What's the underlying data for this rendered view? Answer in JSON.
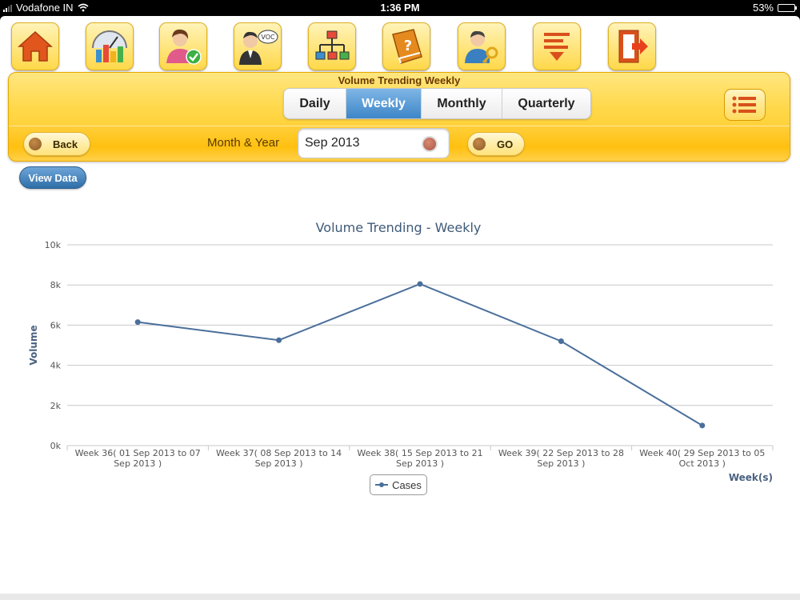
{
  "status_bar": {
    "carrier": "Vodafone IN",
    "time": "1:36 PM",
    "battery": "53%",
    "battery_level": 0.53
  },
  "toolbar": {
    "icons": [
      "home-icon",
      "dashboard-gauge-icon",
      "approval-user-icon",
      "voc-agent-icon",
      "hierarchy-icon",
      "help-book-icon",
      "user-key-icon",
      "sort-filter-icon",
      "logout-icon"
    ]
  },
  "header": {
    "title": "Volume Trending Weekly",
    "tabs": [
      {
        "label": "Daily",
        "active": false
      },
      {
        "label": "Weekly",
        "active": true
      },
      {
        "label": "Monthly",
        "active": false
      },
      {
        "label": "Quarterly",
        "active": false
      }
    ],
    "back_label": "Back",
    "month_year_label": "Month & Year",
    "month_value": "Sep 2013",
    "go_label": "GO"
  },
  "view_data_label": "View Data",
  "chart_data": {
    "type": "line",
    "title": "Volume Trending - Weekly",
    "xlabel": "Week(s)",
    "ylabel": "Volume",
    "ylim": [
      0,
      10000
    ],
    "yticks": [
      "0k",
      "2k",
      "4k",
      "6k",
      "8k",
      "10k"
    ],
    "grid": true,
    "legend_position": "bottom-center",
    "categories": [
      [
        "Week 36( 01 Sep 2013 to 07",
        "Sep 2013 )"
      ],
      [
        "Week 37( 08 Sep 2013 to 14",
        "Sep 2013 )"
      ],
      [
        "Week 38( 15 Sep 2013 to 21",
        "Sep 2013 )"
      ],
      [
        "Week 39( 22 Sep 2013 to 28",
        "Sep 2013 )"
      ],
      [
        "Week 40( 29 Sep 2013 to 05",
        "Oct 2013 )"
      ]
    ],
    "series": [
      {
        "name": "Cases",
        "color": "#4a6f9b",
        "values": [
          6150,
          5250,
          8050,
          5200,
          1000
        ]
      }
    ]
  }
}
